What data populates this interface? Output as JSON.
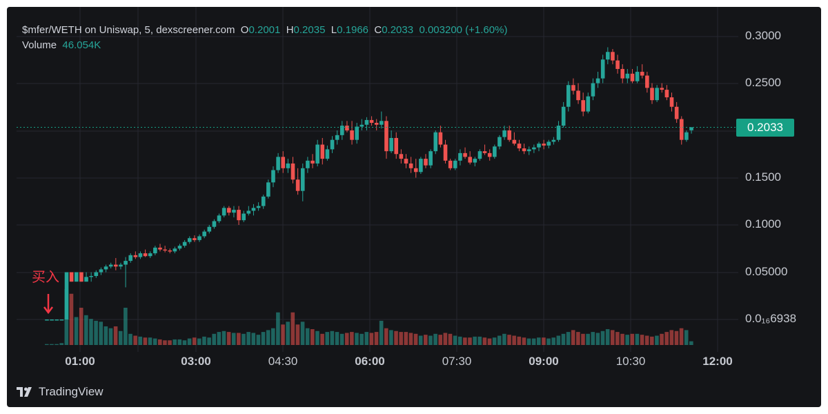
{
  "header": {
    "symbol": "$mfer/WETH on Uniswap, 5, dexscreener.com",
    "o_label": "O",
    "o_value": "0.2001",
    "h_label": "H",
    "h_value": "0.2035",
    "l_label": "L",
    "l_value": "0.1966",
    "c_label": "C",
    "c_value": "0.2033",
    "change": "0.003200 (+1.60%)",
    "volume_label": "Volume",
    "volume_value": "46.054K"
  },
  "last_price_tag": "0.2033",
  "annotation": {
    "text": "买入"
  },
  "brand": {
    "name": "TradingView"
  },
  "colors": {
    "up": "#26a69a",
    "down": "#ef5350",
    "background": "#141518",
    "grid": "#262830",
    "tag": "#16a085",
    "annotation": "#f23645"
  },
  "chart_data": {
    "type": "candlestick",
    "yticks": [
      "0.3000",
      "0.2500",
      "0.1500",
      "0.1000",
      "0.05000",
      "0.0₁₆6938"
    ],
    "xticks": [
      {
        "label": "01:00",
        "bold": true
      },
      {
        "label": "03:00",
        "bold": true
      },
      {
        "label": "04:30",
        "bold": false
      },
      {
        "label": "06:00",
        "bold": true
      },
      {
        "label": "07:30",
        "bold": false
      },
      {
        "label": "09:00",
        "bold": true
      },
      {
        "label": "10:30",
        "bold": false
      },
      {
        "label": "12:00",
        "bold": true
      }
    ],
    "last_price": 0.2033,
    "candles": [
      [
        0,
        0.0,
        0.0,
        0.0,
        0.0,
        1
      ],
      [
        1,
        0.0,
        0.0,
        0.0,
        0.0,
        1
      ],
      [
        2,
        0.0,
        0.0,
        0.0,
        0.0,
        1
      ],
      [
        3,
        0.0,
        0.0,
        0.0,
        0.0,
        2
      ],
      [
        4,
        0.0,
        0.05,
        0.0,
        0.05,
        60
      ],
      [
        5,
        0.05,
        0.05,
        0.04,
        0.04,
        55
      ],
      [
        6,
        0.04,
        0.05,
        0.04,
        0.05,
        30
      ],
      [
        7,
        0.05,
        0.05,
        0.04,
        0.04,
        40
      ],
      [
        8,
        0.04,
        0.05,
        0.04,
        0.045,
        32
      ],
      [
        9,
        0.045,
        0.05,
        0.04,
        0.046,
        28
      ],
      [
        10,
        0.046,
        0.052,
        0.044,
        0.05,
        26
      ],
      [
        11,
        0.05,
        0.055,
        0.047,
        0.053,
        25
      ],
      [
        12,
        0.053,
        0.058,
        0.05,
        0.056,
        20
      ],
      [
        13,
        0.056,
        0.06,
        0.054,
        0.058,
        18
      ],
      [
        14,
        0.058,
        0.065,
        0.052,
        0.056,
        20
      ],
      [
        15,
        0.056,
        0.06,
        0.053,
        0.058,
        15
      ],
      [
        16,
        0.058,
        0.066,
        0.034,
        0.062,
        40
      ],
      [
        17,
        0.062,
        0.07,
        0.06,
        0.068,
        12
      ],
      [
        18,
        0.068,
        0.072,
        0.064,
        0.066,
        10
      ],
      [
        19,
        0.066,
        0.072,
        0.064,
        0.07,
        9
      ],
      [
        20,
        0.07,
        0.074,
        0.066,
        0.067,
        8
      ],
      [
        21,
        0.067,
        0.072,
        0.065,
        0.07,
        8
      ],
      [
        22,
        0.07,
        0.078,
        0.068,
        0.076,
        7
      ],
      [
        23,
        0.076,
        0.08,
        0.072,
        0.074,
        6
      ],
      [
        24,
        0.074,
        0.078,
        0.071,
        0.073,
        5
      ],
      [
        25,
        0.073,
        0.075,
        0.07,
        0.072,
        5
      ],
      [
        26,
        0.072,
        0.077,
        0.07,
        0.075,
        6
      ],
      [
        27,
        0.075,
        0.08,
        0.073,
        0.078,
        6
      ],
      [
        28,
        0.078,
        0.084,
        0.076,
        0.082,
        5
      ],
      [
        29,
        0.082,
        0.088,
        0.08,
        0.086,
        7
      ],
      [
        30,
        0.086,
        0.089,
        0.082,
        0.084,
        8
      ],
      [
        31,
        0.084,
        0.09,
        0.082,
        0.088,
        7
      ],
      [
        32,
        0.088,
        0.095,
        0.086,
        0.093,
        9
      ],
      [
        33,
        0.093,
        0.1,
        0.091,
        0.098,
        8
      ],
      [
        34,
        0.098,
        0.106,
        0.096,
        0.104,
        12
      ],
      [
        35,
        0.104,
        0.112,
        0.102,
        0.11,
        14
      ],
      [
        36,
        0.11,
        0.12,
        0.108,
        0.118,
        15
      ],
      [
        37,
        0.118,
        0.12,
        0.11,
        0.113,
        14
      ],
      [
        38,
        0.113,
        0.12,
        0.108,
        0.116,
        13
      ],
      [
        39,
        0.116,
        0.12,
        0.1,
        0.105,
        13
      ],
      [
        40,
        0.105,
        0.115,
        0.103,
        0.112,
        12
      ],
      [
        41,
        0.112,
        0.12,
        0.11,
        0.115,
        14
      ],
      [
        42,
        0.115,
        0.122,
        0.11,
        0.118,
        13
      ],
      [
        43,
        0.118,
        0.124,
        0.115,
        0.12,
        11
      ],
      [
        44,
        0.12,
        0.132,
        0.117,
        0.13,
        14
      ],
      [
        45,
        0.13,
        0.148,
        0.128,
        0.145,
        16
      ],
      [
        46,
        0.145,
        0.162,
        0.14,
        0.158,
        18
      ],
      [
        47,
        0.158,
        0.176,
        0.155,
        0.172,
        35
      ],
      [
        48,
        0.172,
        0.178,
        0.155,
        0.16,
        22
      ],
      [
        49,
        0.16,
        0.17,
        0.155,
        0.165,
        25
      ],
      [
        50,
        0.165,
        0.172,
        0.144,
        0.148,
        35
      ],
      [
        51,
        0.148,
        0.16,
        0.132,
        0.136,
        22
      ],
      [
        52,
        0.136,
        0.165,
        0.125,
        0.16,
        25
      ],
      [
        53,
        0.16,
        0.172,
        0.155,
        0.168,
        18
      ],
      [
        54,
        0.168,
        0.175,
        0.16,
        0.165,
        17
      ],
      [
        55,
        0.165,
        0.19,
        0.162,
        0.185,
        15
      ],
      [
        56,
        0.185,
        0.192,
        0.164,
        0.17,
        12
      ],
      [
        57,
        0.17,
        0.184,
        0.168,
        0.18,
        14
      ],
      [
        58,
        0.18,
        0.194,
        0.176,
        0.19,
        15
      ],
      [
        59,
        0.19,
        0.2,
        0.185,
        0.195,
        14
      ],
      [
        60,
        0.195,
        0.21,
        0.19,
        0.205,
        12
      ],
      [
        61,
        0.205,
        0.21,
        0.198,
        0.2,
        13
      ],
      [
        62,
        0.2,
        0.21,
        0.185,
        0.19,
        14
      ],
      [
        63,
        0.19,
        0.208,
        0.186,
        0.204,
        13
      ],
      [
        64,
        0.204,
        0.212,
        0.2,
        0.206,
        12
      ],
      [
        65,
        0.206,
        0.214,
        0.2,
        0.211,
        14
      ],
      [
        66,
        0.211,
        0.215,
        0.205,
        0.208,
        13
      ],
      [
        67,
        0.208,
        0.212,
        0.2,
        0.206,
        14
      ],
      [
        68,
        0.206,
        0.22,
        0.202,
        0.21,
        26
      ],
      [
        69,
        0.21,
        0.215,
        0.17,
        0.178,
        18
      ],
      [
        70,
        0.178,
        0.2,
        0.176,
        0.192,
        16
      ],
      [
        71,
        0.192,
        0.198,
        0.17,
        0.175,
        15
      ],
      [
        72,
        0.175,
        0.18,
        0.165,
        0.17,
        14
      ],
      [
        73,
        0.17,
        0.175,
        0.16,
        0.165,
        14
      ],
      [
        74,
        0.165,
        0.172,
        0.155,
        0.16,
        13
      ],
      [
        75,
        0.16,
        0.17,
        0.15,
        0.156,
        12
      ],
      [
        76,
        0.156,
        0.172,
        0.154,
        0.17,
        10
      ],
      [
        77,
        0.17,
        0.175,
        0.16,
        0.163,
        11
      ],
      [
        78,
        0.163,
        0.18,
        0.16,
        0.178,
        10
      ],
      [
        79,
        0.178,
        0.2,
        0.175,
        0.198,
        12
      ],
      [
        80,
        0.198,
        0.205,
        0.182,
        0.185,
        11
      ],
      [
        81,
        0.185,
        0.19,
        0.165,
        0.168,
        13
      ],
      [
        82,
        0.168,
        0.17,
        0.158,
        0.16,
        12
      ],
      [
        83,
        0.16,
        0.17,
        0.158,
        0.168,
        10
      ],
      [
        84,
        0.168,
        0.18,
        0.163,
        0.176,
        9
      ],
      [
        85,
        0.176,
        0.182,
        0.17,
        0.172,
        8
      ],
      [
        86,
        0.172,
        0.178,
        0.164,
        0.166,
        8
      ],
      [
        87,
        0.166,
        0.172,
        0.162,
        0.17,
        9
      ],
      [
        88,
        0.17,
        0.18,
        0.168,
        0.178,
        9
      ],
      [
        89,
        0.178,
        0.185,
        0.174,
        0.176,
        8
      ],
      [
        90,
        0.176,
        0.18,
        0.168,
        0.172,
        7
      ],
      [
        91,
        0.172,
        0.185,
        0.17,
        0.183,
        8
      ],
      [
        92,
        0.183,
        0.195,
        0.18,
        0.193,
        10
      ],
      [
        93,
        0.193,
        0.205,
        0.19,
        0.2,
        12
      ],
      [
        94,
        0.2,
        0.205,
        0.188,
        0.19,
        11
      ],
      [
        95,
        0.19,
        0.198,
        0.184,
        0.186,
        10
      ],
      [
        96,
        0.186,
        0.19,
        0.178,
        0.181,
        9
      ],
      [
        97,
        0.181,
        0.186,
        0.175,
        0.178,
        8
      ],
      [
        98,
        0.178,
        0.183,
        0.174,
        0.18,
        7
      ],
      [
        99,
        0.18,
        0.185,
        0.176,
        0.182,
        7
      ],
      [
        100,
        0.182,
        0.188,
        0.178,
        0.186,
        8
      ],
      [
        101,
        0.186,
        0.19,
        0.18,
        0.184,
        8
      ],
      [
        102,
        0.184,
        0.19,
        0.181,
        0.188,
        7
      ],
      [
        103,
        0.188,
        0.193,
        0.185,
        0.19,
        8
      ],
      [
        104,
        0.19,
        0.21,
        0.188,
        0.205,
        10
      ],
      [
        105,
        0.205,
        0.23,
        0.203,
        0.225,
        12
      ],
      [
        106,
        0.225,
        0.252,
        0.22,
        0.248,
        14
      ],
      [
        107,
        0.248,
        0.255,
        0.238,
        0.242,
        16
      ],
      [
        108,
        0.242,
        0.25,
        0.228,
        0.232,
        14
      ],
      [
        109,
        0.232,
        0.24,
        0.215,
        0.22,
        12
      ],
      [
        110,
        0.22,
        0.24,
        0.218,
        0.236,
        12
      ],
      [
        111,
        0.236,
        0.255,
        0.232,
        0.25,
        14
      ],
      [
        112,
        0.25,
        0.262,
        0.245,
        0.255,
        13
      ],
      [
        113,
        0.255,
        0.28,
        0.25,
        0.275,
        15
      ],
      [
        114,
        0.275,
        0.288,
        0.27,
        0.283,
        17
      ],
      [
        115,
        0.283,
        0.286,
        0.27,
        0.274,
        16
      ],
      [
        116,
        0.274,
        0.28,
        0.26,
        0.265,
        14
      ],
      [
        117,
        0.265,
        0.27,
        0.25,
        0.255,
        12
      ],
      [
        118,
        0.255,
        0.265,
        0.25,
        0.26,
        11
      ],
      [
        119,
        0.26,
        0.265,
        0.25,
        0.252,
        12
      ],
      [
        120,
        0.252,
        0.268,
        0.25,
        0.262,
        12
      ],
      [
        121,
        0.262,
        0.27,
        0.255,
        0.258,
        11
      ],
      [
        122,
        0.258,
        0.262,
        0.24,
        0.245,
        10
      ],
      [
        123,
        0.245,
        0.25,
        0.228,
        0.232,
        9
      ],
      [
        124,
        0.232,
        0.248,
        0.23,
        0.245,
        10
      ],
      [
        125,
        0.245,
        0.25,
        0.24,
        0.243,
        12
      ],
      [
        126,
        0.243,
        0.248,
        0.232,
        0.235,
        14
      ],
      [
        127,
        0.235,
        0.24,
        0.22,
        0.225,
        16
      ],
      [
        128,
        0.225,
        0.23,
        0.208,
        0.212,
        15
      ],
      [
        129,
        0.212,
        0.215,
        0.185,
        0.19,
        18
      ],
      [
        130,
        0.19,
        0.2,
        0.188,
        0.198,
        16
      ],
      [
        131,
        0.2001,
        0.2035,
        0.1966,
        0.2033,
        4
      ]
    ]
  }
}
